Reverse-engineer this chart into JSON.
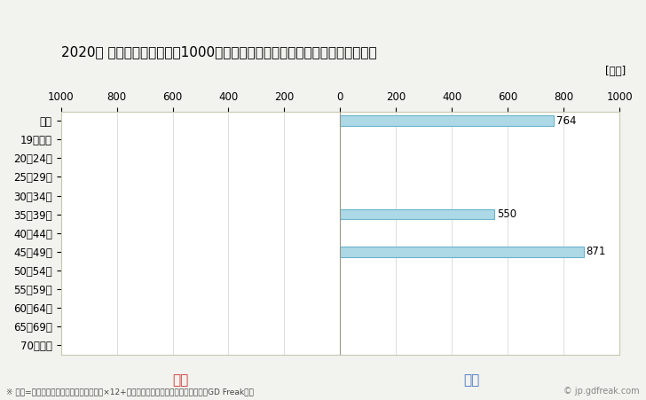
{
  "title": "2020年 民間企業（従業者数1000人以上）フルタイム労働者の男女別平均年収",
  "unit_label": "[万円]",
  "categories": [
    "全体",
    "19歳以下",
    "20～24歳",
    "25～29歳",
    "30～34歳",
    "35～39歳",
    "40～44歳",
    "45～49歳",
    "50～54歳",
    "55～59歳",
    "60～64歳",
    "65～69歳",
    "70歳以上"
  ],
  "male_values": [
    764,
    0,
    0,
    0,
    0,
    550,
    0,
    871,
    0,
    0,
    0,
    0,
    0
  ],
  "female_values": [
    0,
    0,
    0,
    0,
    0,
    0,
    0,
    0,
    0,
    0,
    0,
    0,
    0
  ],
  "male_color": "#add8e6",
  "male_edge_color": "#6ab4cc",
  "female_color": "#ffb6c1",
  "female_edge_color": "#e07090",
  "male_label": "男性",
  "female_label": "女性",
  "male_label_color": "#4472c4",
  "female_label_color": "#cc3333",
  "xlim": 1000,
  "footnote": "※ 年収=「きまって支給する現金給与額」×12+「年間賞与その他特別給与額」としてGD Freak推計",
  "copyright": "© jp.gdfreak.com",
  "background_color": "#f2f2ee",
  "plot_background_color": "#ffffff",
  "bar_height": 0.55,
  "title_fontsize": 11,
  "label_fontsize": 8.5,
  "annotation_fontsize": 8.5,
  "grid_color": "#d0d0d0",
  "center_line_color": "#999988",
  "border_color": "#aaaaaa"
}
